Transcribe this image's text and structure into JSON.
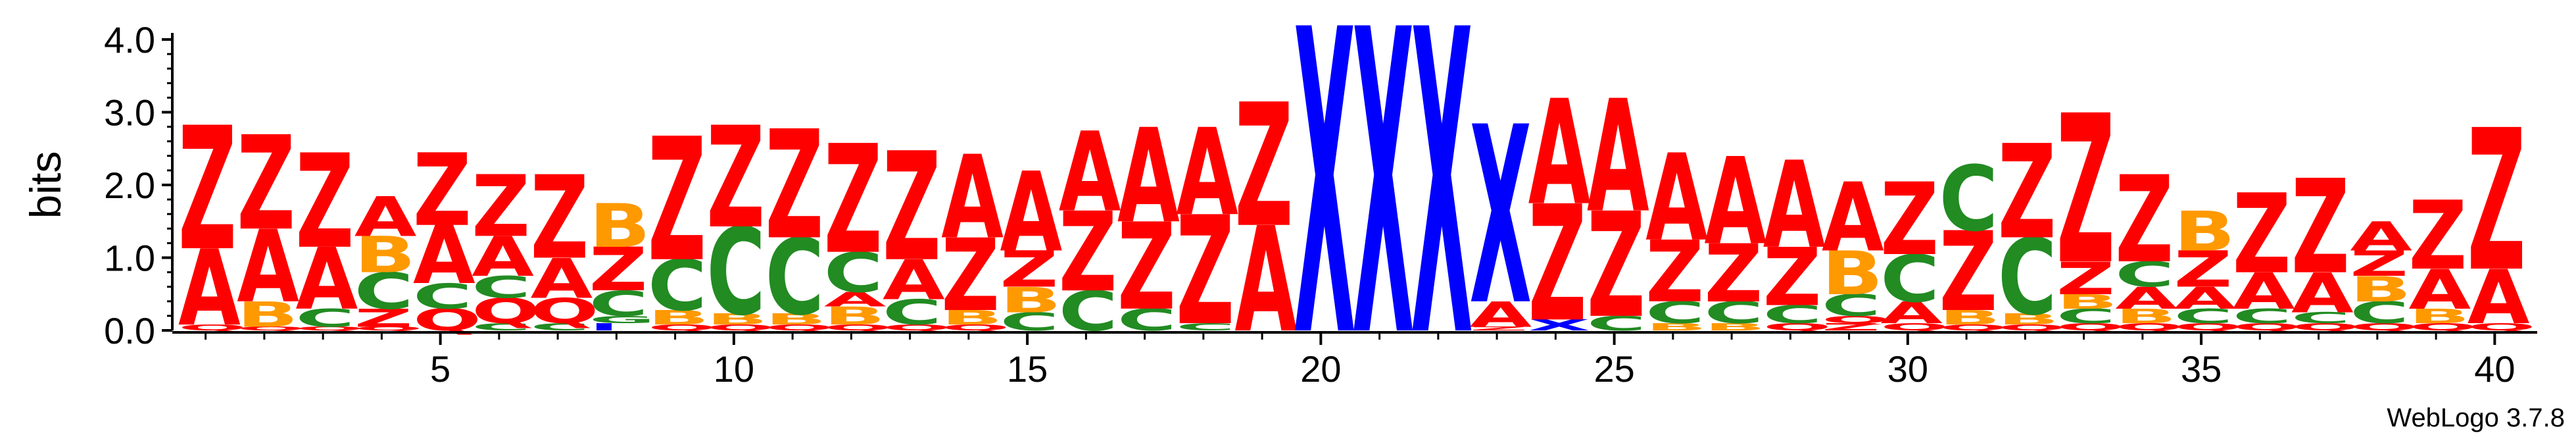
{
  "chart_data": {
    "type": "sequence-logo",
    "ylabel": "bits",
    "ylim": [
      0,
      4.0
    ],
    "y_ticks": [
      "0.0",
      "1.0",
      "2.0",
      "3.0",
      "4.0"
    ],
    "x_ticks": [
      5,
      10,
      15,
      20,
      25,
      30,
      35,
      40
    ],
    "positions": 40,
    "colors": {
      "Z": "#ff0000",
      "A": "#ff0000",
      "B": "#ff9900",
      "C": "#228b22",
      "G": "#228b22",
      "Q": "#ff0000",
      "X": "#0000ff",
      "I": "#0000ff"
    },
    "columns": [
      {
        "pos": 1,
        "stack": [
          [
            "Q",
            0.08
          ],
          [
            "A",
            1.05
          ],
          [
            "Z",
            1.7
          ]
        ]
      },
      {
        "pos": 2,
        "stack": [
          [
            "Q",
            0.05
          ],
          [
            "B",
            0.35
          ],
          [
            "A",
            1.0
          ],
          [
            "Z",
            1.3
          ]
        ]
      },
      {
        "pos": 3,
        "stack": [
          [
            "Q",
            0.05
          ],
          [
            "C",
            0.25
          ],
          [
            "A",
            0.85
          ],
          [
            "Z",
            1.3
          ]
        ]
      },
      {
        "pos": 4,
        "stack": [
          [
            "Q",
            0.05
          ],
          [
            "Z",
            0.25
          ],
          [
            "C",
            0.5
          ],
          [
            "B",
            0.5
          ],
          [
            "A",
            0.55
          ]
        ]
      },
      {
        "pos": 5,
        "stack": [
          [
            "Q",
            0.3
          ],
          [
            "C",
            0.35
          ],
          [
            "A",
            0.8
          ],
          [
            "Z",
            1.0
          ]
        ]
      },
      {
        "pos": 6,
        "stack": [
          [
            "C",
            0.1
          ],
          [
            "Q",
            0.35
          ],
          [
            "C",
            0.3
          ],
          [
            "A",
            0.55
          ],
          [
            "Z",
            0.85
          ]
        ]
      },
      {
        "pos": 7,
        "stack": [
          [
            "C",
            0.1
          ],
          [
            "Q",
            0.35
          ],
          [
            "A",
            0.55
          ],
          [
            "Z",
            1.15
          ]
        ]
      },
      {
        "pos": 8,
        "stack": [
          [
            "I",
            0.1
          ],
          [
            "G",
            0.1
          ],
          [
            "C",
            0.35
          ],
          [
            "Z",
            0.6
          ],
          [
            "B",
            0.6
          ]
        ]
      },
      {
        "pos": 9,
        "stack": [
          [
            "Q",
            0.08
          ],
          [
            "B",
            0.2
          ],
          [
            "C",
            0.7
          ],
          [
            "Z",
            1.7
          ]
        ]
      },
      {
        "pos": 10,
        "stack": [
          [
            "Q",
            0.08
          ],
          [
            "B",
            0.15
          ],
          [
            "C",
            1.2
          ],
          [
            "Z",
            1.4
          ]
        ]
      },
      {
        "pos": 11,
        "stack": [
          [
            "Q",
            0.08
          ],
          [
            "B",
            0.15
          ],
          [
            "C",
            1.05
          ],
          [
            "Z",
            1.5
          ]
        ]
      },
      {
        "pos": 12,
        "stack": [
          [
            "Q",
            0.08
          ],
          [
            "B",
            0.25
          ],
          [
            "A",
            0.2
          ],
          [
            "C",
            0.55
          ],
          [
            "Z",
            1.5
          ]
        ]
      },
      {
        "pos": 13,
        "stack": [
          [
            "Q",
            0.08
          ],
          [
            "C",
            0.35
          ],
          [
            "A",
            0.55
          ],
          [
            "Z",
            1.5
          ]
        ]
      },
      {
        "pos": 14,
        "stack": [
          [
            "Q",
            0.08
          ],
          [
            "B",
            0.2
          ],
          [
            "Z",
            1.0
          ],
          [
            "A",
            1.15
          ]
        ]
      },
      {
        "pos": 15,
        "stack": [
          [
            "C",
            0.25
          ],
          [
            "B",
            0.35
          ],
          [
            "Z",
            0.5
          ],
          [
            "A",
            1.1
          ]
        ]
      },
      {
        "pos": 16,
        "stack": [
          [
            "C",
            0.55
          ],
          [
            "Z",
            1.1
          ],
          [
            "A",
            1.1
          ]
        ]
      },
      {
        "pos": 17,
        "stack": [
          [
            "C",
            0.3
          ],
          [
            "Z",
            1.2
          ],
          [
            "A",
            1.3
          ]
        ]
      },
      {
        "pos": 18,
        "stack": [
          [
            "C",
            0.1
          ],
          [
            "Z",
            1.5
          ],
          [
            "A",
            1.2
          ]
        ]
      },
      {
        "pos": 19,
        "stack": [
          [
            "A",
            1.45
          ],
          [
            "Z",
            1.7
          ]
        ]
      },
      {
        "pos": 20,
        "stack": [
          [
            "X",
            4.2
          ]
        ]
      },
      {
        "pos": 21,
        "stack": [
          [
            "X",
            4.2
          ]
        ]
      },
      {
        "pos": 22,
        "stack": [
          [
            "X",
            4.2
          ]
        ]
      },
      {
        "pos": 23,
        "stack": [
          [
            "Z",
            0.05
          ],
          [
            "A",
            0.35
          ],
          [
            "X",
            2.45
          ]
        ]
      },
      {
        "pos": 24,
        "stack": [
          [
            "X",
            0.15
          ],
          [
            "Z",
            1.6
          ],
          [
            "A",
            1.45
          ]
        ]
      },
      {
        "pos": 25,
        "stack": [
          [
            "C",
            0.2
          ],
          [
            "Z",
            1.45
          ],
          [
            "A",
            1.55
          ]
        ]
      },
      {
        "pos": 26,
        "stack": [
          [
            "B",
            0.1
          ],
          [
            "C",
            0.3
          ],
          [
            "Z",
            0.85
          ],
          [
            "A",
            1.2
          ]
        ]
      },
      {
        "pos": 27,
        "stack": [
          [
            "B",
            0.1
          ],
          [
            "C",
            0.3
          ],
          [
            "Z",
            0.8
          ],
          [
            "A",
            1.2
          ]
        ]
      },
      {
        "pos": 28,
        "stack": [
          [
            "Q",
            0.1
          ],
          [
            "C",
            0.25
          ],
          [
            "Z",
            0.8
          ],
          [
            "A",
            1.2
          ]
        ]
      },
      {
        "pos": 29,
        "stack": [
          [
            "Z",
            0.1
          ],
          [
            "Q",
            0.1
          ],
          [
            "C",
            0.3
          ],
          [
            "B",
            0.6
          ],
          [
            "A",
            0.95
          ]
        ]
      },
      {
        "pos": 30,
        "stack": [
          [
            "Q",
            0.1
          ],
          [
            "A",
            0.3
          ],
          [
            "C",
            0.65
          ],
          [
            "Z",
            1.0
          ]
        ]
      },
      {
        "pos": 31,
        "stack": [
          [
            "Q",
            0.08
          ],
          [
            "B",
            0.2
          ],
          [
            "Z",
            1.1
          ],
          [
            "C",
            0.9
          ]
        ]
      },
      {
        "pos": 32,
        "stack": [
          [
            "Q",
            0.08
          ],
          [
            "B",
            0.15
          ],
          [
            "C",
            1.05
          ],
          [
            "Z",
            1.3
          ]
        ]
      },
      {
        "pos": 33,
        "stack": [
          [
            "Q",
            0.1
          ],
          [
            "C",
            0.2
          ],
          [
            "B",
            0.2
          ],
          [
            "Z",
            0.45
          ],
          [
            "Z",
            2.05
          ]
        ]
      },
      {
        "pos": 34,
        "stack": [
          [
            "Q",
            0.1
          ],
          [
            "B",
            0.2
          ],
          [
            "A",
            0.3
          ],
          [
            "C",
            0.35
          ],
          [
            "Z",
            1.2
          ]
        ]
      },
      {
        "pos": 35,
        "stack": [
          [
            "Q",
            0.1
          ],
          [
            "C",
            0.2
          ],
          [
            "A",
            0.3
          ],
          [
            "Z",
            0.5
          ],
          [
            "B",
            0.55
          ]
        ]
      },
      {
        "pos": 36,
        "stack": [
          [
            "Q",
            0.1
          ],
          [
            "C",
            0.2
          ],
          [
            "A",
            0.5
          ],
          [
            "Z",
            1.1
          ]
        ]
      },
      {
        "pos": 37,
        "stack": [
          [
            "Q",
            0.1
          ],
          [
            "C",
            0.15
          ],
          [
            "A",
            0.55
          ],
          [
            "Z",
            1.3
          ]
        ]
      },
      {
        "pos": 38,
        "stack": [
          [
            "Q",
            0.1
          ],
          [
            "C",
            0.3
          ],
          [
            "B",
            0.35
          ],
          [
            "Z",
            0.35
          ],
          [
            "A",
            0.4
          ]
        ]
      },
      {
        "pos": 39,
        "stack": [
          [
            "Q",
            0.1
          ],
          [
            "B",
            0.2
          ],
          [
            "A",
            0.55
          ],
          [
            "Z",
            0.95
          ]
        ]
      },
      {
        "pos": 40,
        "stack": [
          [
            "Q",
            0.1
          ],
          [
            "A",
            0.75
          ],
          [
            "Z",
            1.95
          ]
        ]
      }
    ]
  },
  "footer": {
    "credit": "WebLogo 3.7.8"
  }
}
